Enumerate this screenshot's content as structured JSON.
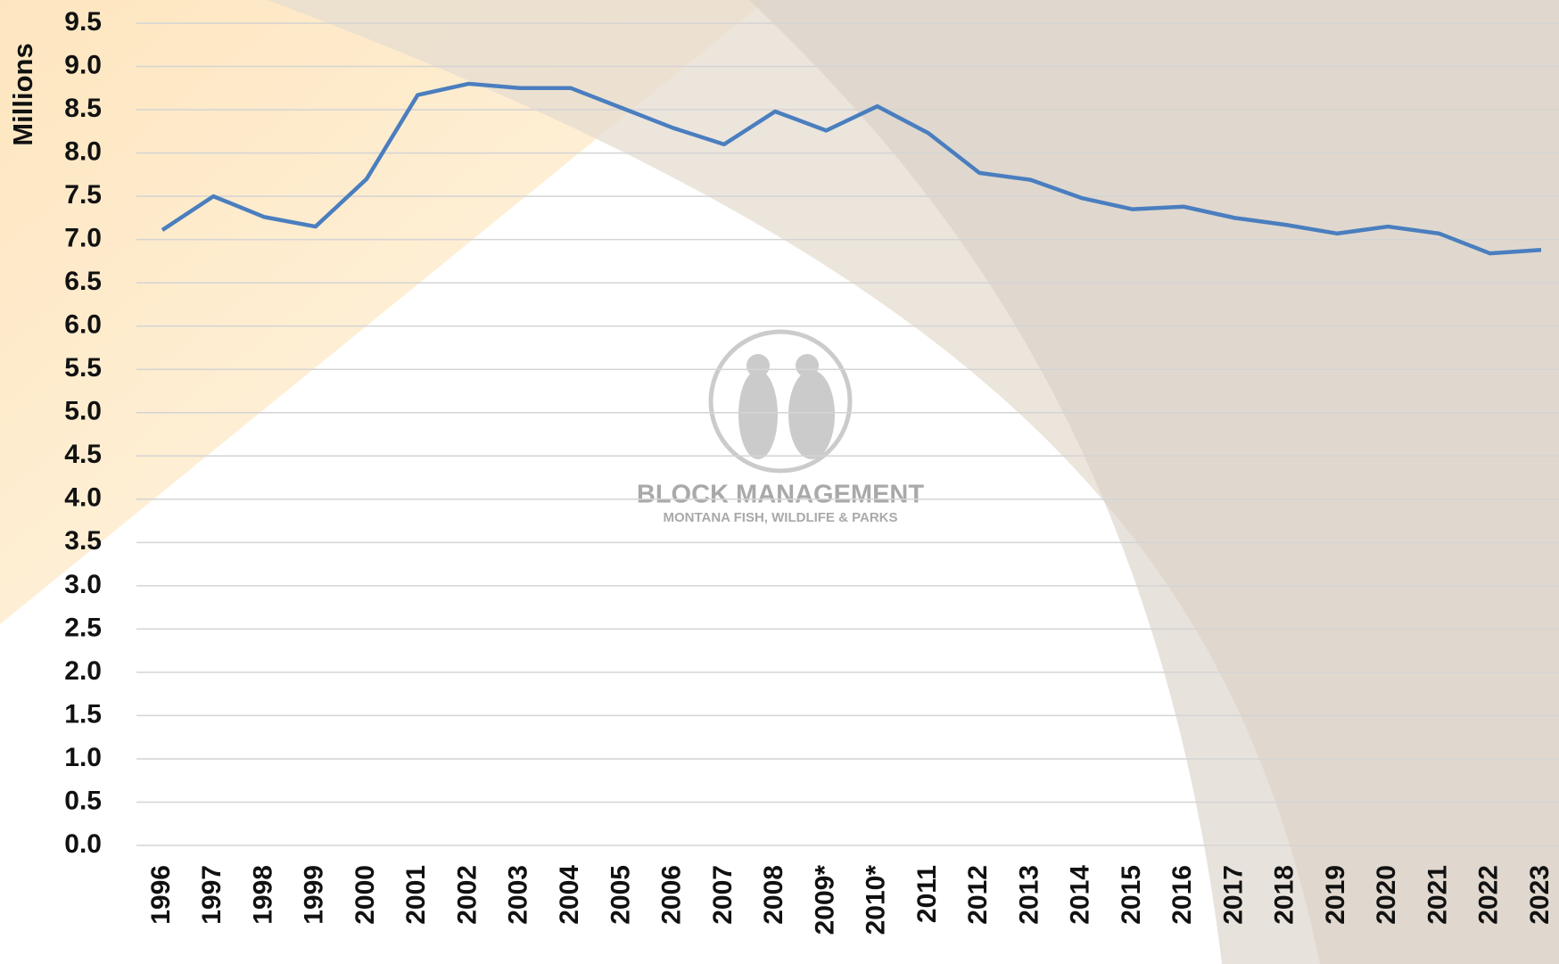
{
  "chart_data": {
    "type": "line",
    "y_label": "Millions",
    "categories": [
      "1996",
      "1997",
      "1998",
      "1999",
      "2000",
      "2001",
      "2002",
      "2003",
      "2004",
      "2005",
      "2006",
      "2007",
      "2008",
      "2009*",
      "2010*",
      "2011",
      "2012",
      "2013",
      "2014",
      "2015",
      "2016",
      "2017",
      "2018",
      "2019",
      "2020",
      "2021",
      "2022",
      "2023"
    ],
    "values": [
      7.11,
      7.5,
      7.26,
      7.15,
      7.7,
      8.67,
      8.8,
      8.75,
      8.75,
      8.52,
      8.29,
      8.1,
      8.48,
      8.26,
      8.54,
      8.23,
      7.77,
      7.69,
      7.48,
      7.35,
      7.38,
      7.25,
      7.17,
      7.07,
      7.15,
      7.07,
      6.84,
      6.88
    ],
    "color": "#4a7ebf",
    "ylim": [
      0,
      9.5
    ],
    "yticks": [
      {
        "value": 0,
        "label": "0.0"
      },
      0.5,
      {
        "value": 1,
        "label": "1.0"
      },
      1.5,
      {
        "value": 2,
        "label": "2.0"
      },
      2.5,
      {
        "value": 3,
        "label": "3.0"
      },
      3.5,
      {
        "value": 4,
        "label": "4.0"
      },
      4.5,
      {
        "value": 5,
        "label": "5.0"
      },
      5.5,
      {
        "value": 6,
        "label": "6.0"
      },
      6.5,
      {
        "value": 7,
        "label": "7.0"
      },
      7.5,
      {
        "value": 8,
        "label": "8.0"
      },
      8.5,
      {
        "value": 9,
        "label": "9.0"
      },
      9.5
    ],
    "grid": true
  },
  "watermark": {
    "title": "BLOCK MANAGEMENT",
    "subtitle": "MONTANA FISH, WILDLIFE & PARKS"
  }
}
